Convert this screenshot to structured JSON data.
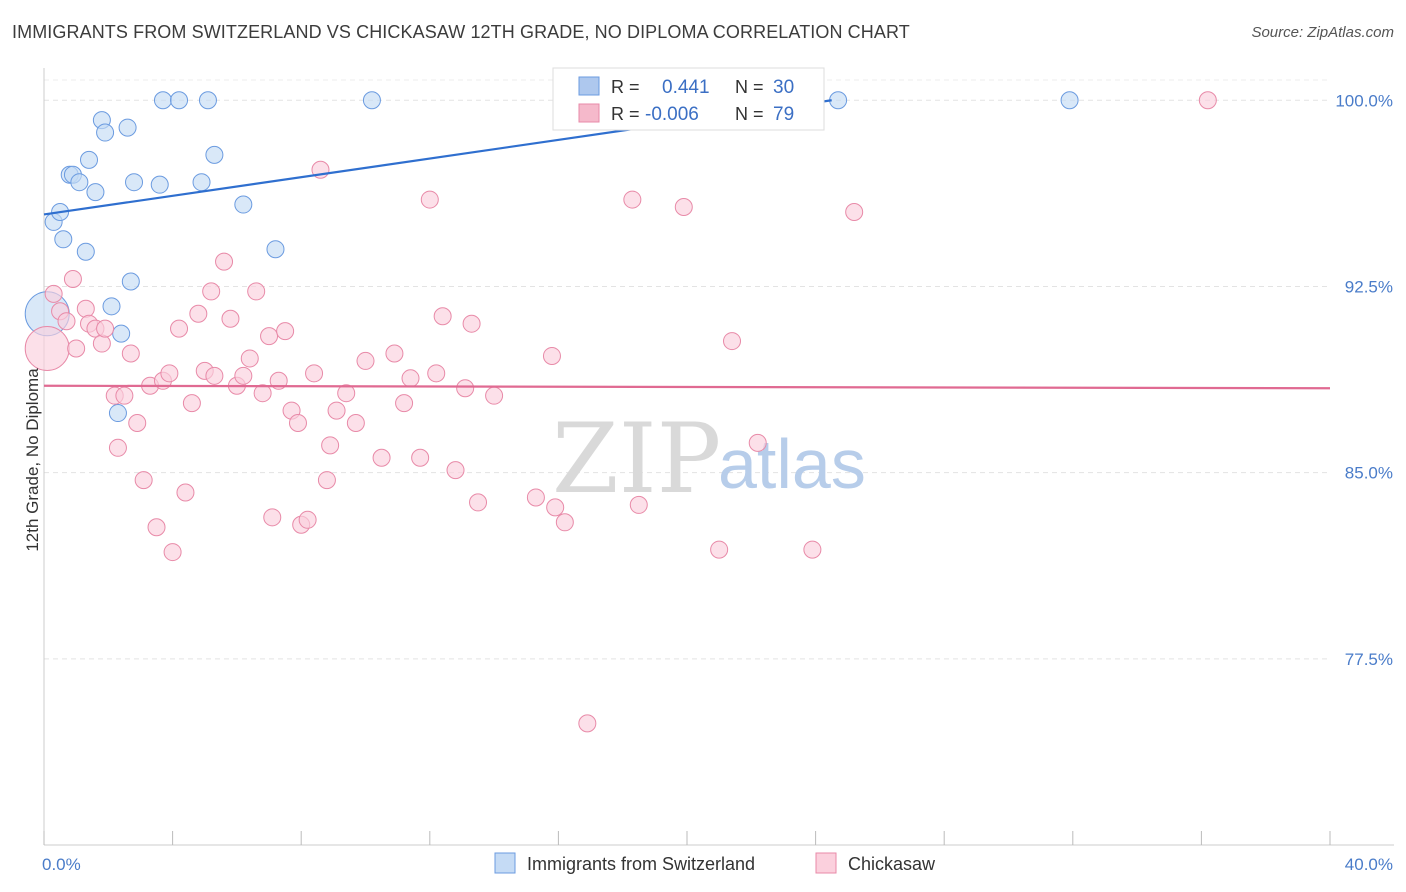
{
  "header": {
    "title": "IMMIGRANTS FROM SWITZERLAND VS CHICKASAW 12TH GRADE, NO DIPLOMA CORRELATION CHART",
    "source": "Source: ZipAtlas.com"
  },
  "watermark": {
    "zip": "ZIP",
    "atlas": "atlas"
  },
  "legend_box": {
    "rows": [
      {
        "r_label": "R =",
        "r_value": "0.441",
        "n_label": "N =",
        "n_value": "30",
        "color": "#aec8ee",
        "stroke": "#6b9be0"
      },
      {
        "r_label": "R =",
        "r_value": "-0.006",
        "n_label": "N =",
        "n_value": "79",
        "color": "#f5b9cb",
        "stroke": "#e88aa8"
      }
    ]
  },
  "bottom_legend": [
    {
      "label": "Immigrants from Switzerland",
      "color": "#c5dbf5",
      "stroke": "#6b9be0"
    },
    {
      "label": "Chickasaw",
      "color": "#fbd0dd",
      "stroke": "#e88aa8"
    }
  ],
  "chart_data": {
    "type": "scatter",
    "title": "IMMIGRANTS FROM SWITZERLAND VS CHICKASAW 12TH GRADE, NO DIPLOMA CORRELATION CHART",
    "xlabel": "",
    "ylabel": "12th Grade, No Diploma",
    "xlim": [
      0,
      40
    ],
    "ylim": [
      70.0,
      101.3
    ],
    "x_tick_labels": [
      "0.0%",
      "40.0%"
    ],
    "y_ticks": [
      77.5,
      85.0,
      92.5,
      100.0
    ],
    "y_tick_labels": [
      "77.5%",
      "85.0%",
      "92.5%",
      "100.0%"
    ],
    "grid": true,
    "series": [
      {
        "name": "Immigrants from Switzerland",
        "color": "#6b9be0",
        "fill": "#c5dbf5",
        "trend": {
          "x": [
            0,
            24.5
          ],
          "y": [
            95.4,
            100.0
          ]
        },
        "points": [
          {
            "x": 0.1,
            "y": 91.4,
            "r": 22
          },
          {
            "x": 0.3,
            "y": 95.1
          },
          {
            "x": 0.5,
            "y": 95.5
          },
          {
            "x": 0.6,
            "y": 94.4
          },
          {
            "x": 0.8,
            "y": 97.0
          },
          {
            "x": 0.9,
            "y": 97.0
          },
          {
            "x": 1.1,
            "y": 96.7
          },
          {
            "x": 1.3,
            "y": 93.9
          },
          {
            "x": 1.4,
            "y": 97.6
          },
          {
            "x": 1.6,
            "y": 96.3
          },
          {
            "x": 1.8,
            "y": 99.2
          },
          {
            "x": 1.9,
            "y": 98.7
          },
          {
            "x": 2.1,
            "y": 91.7
          },
          {
            "x": 2.3,
            "y": 87.4
          },
          {
            "x": 2.4,
            "y": 90.6
          },
          {
            "x": 2.6,
            "y": 98.9
          },
          {
            "x": 2.7,
            "y": 92.7
          },
          {
            "x": 2.8,
            "y": 96.7
          },
          {
            "x": 3.6,
            "y": 96.6
          },
          {
            "x": 3.7,
            "y": 100.0
          },
          {
            "x": 4.2,
            "y": 100.0
          },
          {
            "x": 4.9,
            "y": 96.7
          },
          {
            "x": 5.1,
            "y": 100.0
          },
          {
            "x": 5.3,
            "y": 97.8
          },
          {
            "x": 6.2,
            "y": 95.8
          },
          {
            "x": 7.2,
            "y": 94.0
          },
          {
            "x": 10.2,
            "y": 100.0
          },
          {
            "x": 18.0,
            "y": 100.0
          },
          {
            "x": 24.7,
            "y": 100.0
          },
          {
            "x": 31.9,
            "y": 100.0
          }
        ]
      },
      {
        "name": "Chickasaw",
        "color": "#e88aa8",
        "fill": "#fbd0dd",
        "trend": {
          "x": [
            0,
            40
          ],
          "y": [
            88.5,
            88.4
          ]
        },
        "points": [
          {
            "x": 0.1,
            "y": 90.0,
            "r": 22
          },
          {
            "x": 0.3,
            "y": 92.2
          },
          {
            "x": 0.5,
            "y": 91.5
          },
          {
            "x": 0.7,
            "y": 91.1
          },
          {
            "x": 0.9,
            "y": 92.8
          },
          {
            "x": 1.0,
            "y": 90.0
          },
          {
            "x": 1.3,
            "y": 91.6
          },
          {
            "x": 1.4,
            "y": 91.0
          },
          {
            "x": 1.6,
            "y": 90.8
          },
          {
            "x": 1.8,
            "y": 90.2
          },
          {
            "x": 1.9,
            "y": 90.8
          },
          {
            "x": 2.2,
            "y": 88.1
          },
          {
            "x": 2.3,
            "y": 86.0
          },
          {
            "x": 2.5,
            "y": 88.1
          },
          {
            "x": 2.7,
            "y": 89.8
          },
          {
            "x": 2.9,
            "y": 87.0
          },
          {
            "x": 3.1,
            "y": 84.7
          },
          {
            "x": 3.3,
            "y": 88.5
          },
          {
            "x": 3.5,
            "y": 82.8
          },
          {
            "x": 3.7,
            "y": 88.7
          },
          {
            "x": 3.9,
            "y": 89.0
          },
          {
            "x": 4.0,
            "y": 81.8
          },
          {
            "x": 4.2,
            "y": 90.8
          },
          {
            "x": 4.4,
            "y": 84.2
          },
          {
            "x": 4.6,
            "y": 87.8
          },
          {
            "x": 4.8,
            "y": 91.4
          },
          {
            "x": 5.0,
            "y": 89.1
          },
          {
            "x": 5.2,
            "y": 92.3
          },
          {
            "x": 5.3,
            "y": 88.9
          },
          {
            "x": 5.6,
            "y": 93.5
          },
          {
            "x": 5.8,
            "y": 91.2
          },
          {
            "x": 6.0,
            "y": 88.5
          },
          {
            "x": 6.2,
            "y": 88.9
          },
          {
            "x": 6.4,
            "y": 89.6
          },
          {
            "x": 6.6,
            "y": 92.3
          },
          {
            "x": 6.8,
            "y": 88.2
          },
          {
            "x": 7.0,
            "y": 90.5
          },
          {
            "x": 7.1,
            "y": 83.2
          },
          {
            "x": 7.3,
            "y": 88.7
          },
          {
            "x": 7.5,
            "y": 90.7
          },
          {
            "x": 7.7,
            "y": 87.5
          },
          {
            "x": 7.9,
            "y": 87.0
          },
          {
            "x": 8.0,
            "y": 82.9
          },
          {
            "x": 8.2,
            "y": 83.1
          },
          {
            "x": 8.4,
            "y": 89.0
          },
          {
            "x": 8.6,
            "y": 97.2
          },
          {
            "x": 8.8,
            "y": 84.7
          },
          {
            "x": 8.9,
            "y": 86.1
          },
          {
            "x": 9.1,
            "y": 87.5
          },
          {
            "x": 9.4,
            "y": 88.2
          },
          {
            "x": 9.7,
            "y": 87.0
          },
          {
            "x": 10.0,
            "y": 89.5
          },
          {
            "x": 10.5,
            "y": 85.6
          },
          {
            "x": 10.9,
            "y": 89.8
          },
          {
            "x": 11.2,
            "y": 87.8
          },
          {
            "x": 11.4,
            "y": 88.8
          },
          {
            "x": 11.7,
            "y": 85.6
          },
          {
            "x": 12.0,
            "y": 96.0
          },
          {
            "x": 12.2,
            "y": 89.0
          },
          {
            "x": 12.4,
            "y": 91.3
          },
          {
            "x": 12.8,
            "y": 85.1
          },
          {
            "x": 13.1,
            "y": 88.4
          },
          {
            "x": 13.3,
            "y": 91.0
          },
          {
            "x": 13.5,
            "y": 83.8
          },
          {
            "x": 14.0,
            "y": 88.1
          },
          {
            "x": 15.3,
            "y": 84.0
          },
          {
            "x": 15.8,
            "y": 89.7
          },
          {
            "x": 15.9,
            "y": 83.6
          },
          {
            "x": 16.2,
            "y": 83.0
          },
          {
            "x": 16.9,
            "y": 74.9
          },
          {
            "x": 18.3,
            "y": 96.0
          },
          {
            "x": 18.5,
            "y": 83.7
          },
          {
            "x": 19.9,
            "y": 95.7
          },
          {
            "x": 21.0,
            "y": 81.9
          },
          {
            "x": 21.4,
            "y": 90.3
          },
          {
            "x": 22.2,
            "y": 86.2
          },
          {
            "x": 23.9,
            "y": 81.9
          },
          {
            "x": 25.2,
            "y": 95.5
          },
          {
            "x": 36.2,
            "y": 100.0
          }
        ]
      }
    ]
  }
}
